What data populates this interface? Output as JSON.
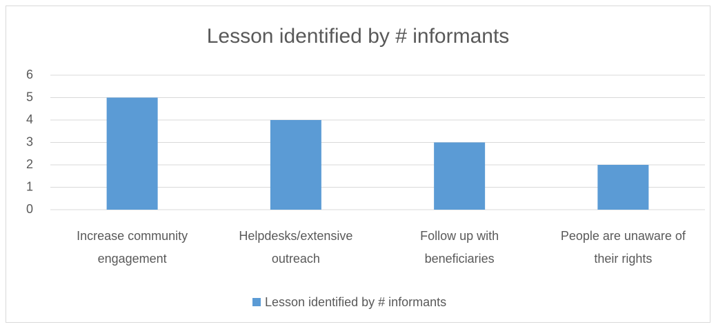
{
  "chart_data": {
    "type": "bar",
    "title": "Lesson identified by # informants",
    "categories": [
      "Increase community engagement",
      "Helpdesks/extensive outreach",
      "Follow up with beneficiaries",
      "People are unaware of their rights"
    ],
    "series": [
      {
        "name": "Lesson identified by # informants",
        "color": "#5b9bd5",
        "values": [
          5,
          4,
          3,
          2
        ]
      }
    ],
    "ylim": [
      0,
      6
    ],
    "yticks": [
      0,
      1,
      2,
      3,
      4,
      5,
      6
    ],
    "grid": true,
    "legend": "bottom"
  }
}
